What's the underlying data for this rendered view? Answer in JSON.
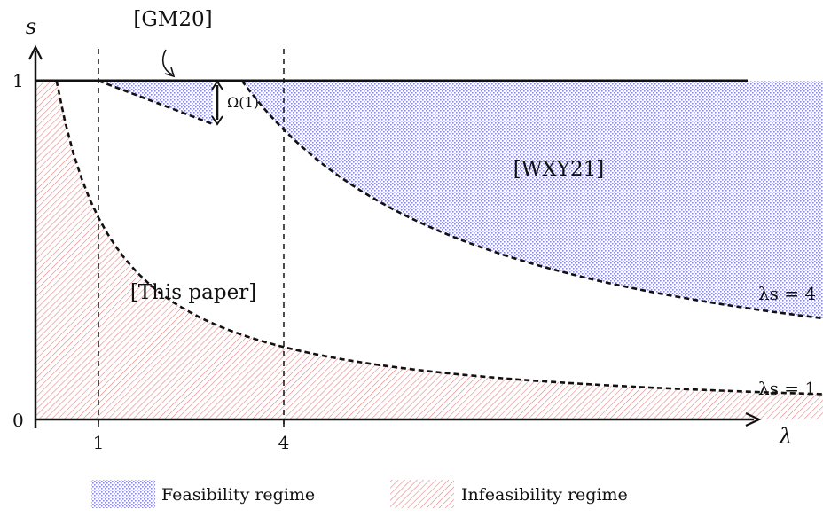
{
  "chart_data": {
    "type": "area",
    "xlabel": "λ",
    "ylabel": "s",
    "y_ticks": [
      "0",
      "1"
    ],
    "x_ticks": [
      "1",
      "4"
    ],
    "annotations": {
      "gm20": "[GM20]",
      "omega": "Ω(1)",
      "wxy21": "[WXY21]",
      "this_paper": "[This paper]",
      "curve_ls4": "λs = 4",
      "curve_ls1": "λs = 1"
    },
    "curves": [
      {
        "name": "λs = 4",
        "x": [
          4,
          5,
          6,
          7,
          8,
          9,
          10,
          11,
          12,
          13,
          14.6
        ],
        "y": [
          1,
          0.8,
          0.667,
          0.571,
          0.5,
          0.444,
          0.4,
          0.364,
          0.333,
          0.308,
          0.274
        ]
      },
      {
        "name": "λs = 1",
        "x": [
          1,
          2,
          3,
          4,
          5,
          6,
          7,
          8,
          9,
          10,
          11,
          12,
          13,
          14.6
        ],
        "y": [
          1,
          0.5,
          0.333,
          0.25,
          0.2,
          0.167,
          0.143,
          0.125,
          0.111,
          0.1,
          0.091,
          0.083,
          0.077,
          0.068
        ]
      }
    ],
    "legend": [
      {
        "label": "Feasibility regime",
        "color": "#8a8ad8"
      },
      {
        "label": "Infeasibility regime",
        "color": "#e77878"
      }
    ]
  }
}
